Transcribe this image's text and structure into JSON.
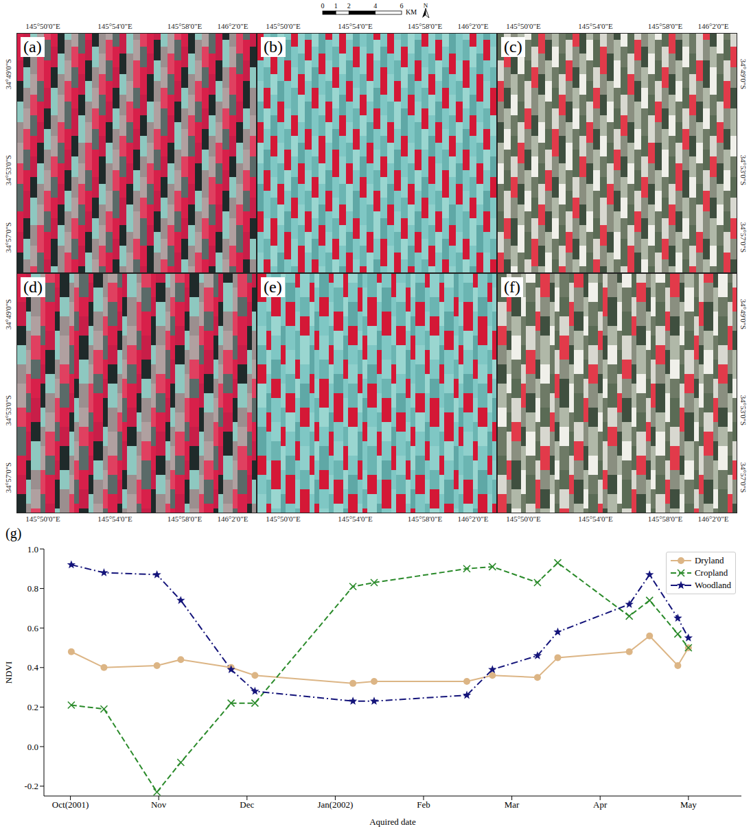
{
  "panels": {
    "letters": [
      "(a)",
      "(b)",
      "(c)",
      "(d)",
      "(e)",
      "(f)"
    ],
    "longitude_labels": [
      "145°50'0\"E",
      "145°54'0\"E",
      "145°58'0\"E",
      "146°2'0\"E"
    ],
    "latitude_labels": [
      "34°49'0\"S",
      "34°53'0\"S",
      "34°57'0\"S"
    ],
    "scale_bar": {
      "ticks": [
        0,
        1,
        2,
        4,
        6
      ],
      "unit": "KM"
    },
    "north": "N"
  },
  "chart_data": {
    "type": "line",
    "panel_label": "(g)",
    "x_label": "Aquired date",
    "y_label": "NDVI",
    "x": [
      0.01,
      0.38,
      0.98,
      1.25,
      1.82,
      2.09,
      3.2,
      3.44,
      4.49,
      4.78,
      5.29,
      5.52,
      6.33,
      6.56,
      6.88,
      7.0
    ],
    "series": [
      {
        "name": "Dryland",
        "color": "#dcb585",
        "marker": "circle",
        "line_style": "solid",
        "values": [
          0.48,
          0.4,
          0.41,
          0.44,
          0.4,
          0.36,
          0.32,
          0.33,
          0.33,
          0.36,
          0.35,
          0.45,
          0.48,
          0.56,
          0.41,
          0.5
        ]
      },
      {
        "name": "Cropland",
        "color": "#2a8a2a",
        "marker": "x",
        "line_style": "dashed",
        "values": [
          0.21,
          0.19,
          -0.23,
          -0.08,
          0.22,
          0.22,
          0.81,
          0.83,
          0.9,
          0.91,
          0.83,
          0.93,
          0.66,
          0.74,
          0.57,
          0.5
        ]
      },
      {
        "name": "Woodland",
        "color": "#14147a",
        "marker": "star",
        "line_style": "dashdot",
        "values": [
          0.92,
          0.88,
          0.87,
          0.74,
          0.39,
          0.28,
          0.23,
          0.23,
          0.26,
          0.39,
          0.46,
          0.58,
          0.72,
          0.87,
          0.65,
          0.55
        ]
      }
    ],
    "xlim": [
      -0.3,
      7.6
    ],
    "xticks": [
      {
        "value": 0,
        "label": "Oct(2001)"
      },
      {
        "value": 1,
        "label": "Nov"
      },
      {
        "value": 2,
        "label": "Dec"
      },
      {
        "value": 3,
        "label": "Jan(2002)"
      },
      {
        "value": 4,
        "label": "Feb"
      },
      {
        "value": 5,
        "label": "Mar"
      },
      {
        "value": 6,
        "label": "Apr"
      },
      {
        "value": 7,
        "label": "May"
      }
    ],
    "ylim": [
      -0.25,
      1.0
    ],
    "yticks": [
      -0.2,
      {
        "value": 0,
        "label": "0.0"
      },
      0.2,
      0.4,
      0.6,
      0.8,
      {
        "value": 1,
        "label": "1.0"
      }
    ],
    "legend": "upper right",
    "grid": false
  }
}
